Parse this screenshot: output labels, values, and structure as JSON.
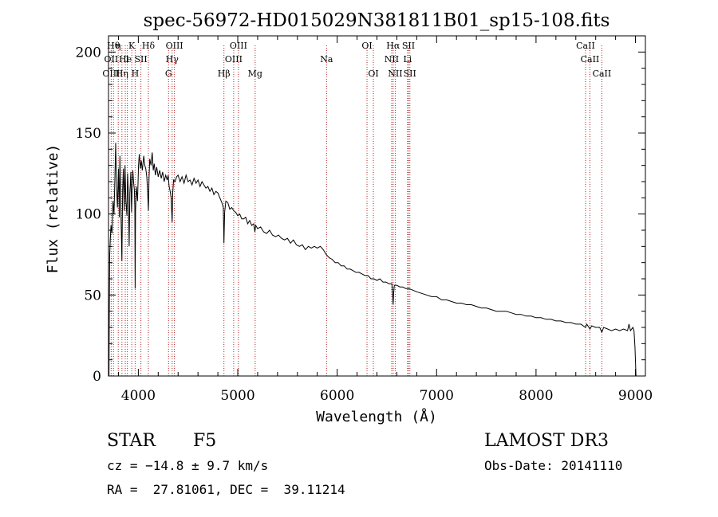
{
  "chart_data": {
    "type": "line",
    "title": "spec-56972-HD015029N381811B01_sp15-108.fits",
    "xlabel": "Wavelength (Å)",
    "ylabel": "Flux (relative)",
    "xlim": [
      3700,
      9100
    ],
    "ylim": [
      0,
      210
    ],
    "x_ticks": [
      4000,
      5000,
      6000,
      7000,
      8000,
      9000
    ],
    "y_ticks": [
      0,
      50,
      100,
      150,
      200
    ],
    "series": [
      {
        "name": "spectrum",
        "color": "#000000",
        "points": [
          [
            3705,
            0
          ],
          [
            3708,
            40
          ],
          [
            3712,
            75
          ],
          [
            3718,
            84
          ],
          [
            3725,
            93
          ],
          [
            3735,
            88
          ],
          [
            3745,
            108
          ],
          [
            3755,
            100
          ],
          [
            3765,
            124
          ],
          [
            3772,
            144
          ],
          [
            3780,
            118
          ],
          [
            3790,
            104
          ],
          [
            3800,
            128
          ],
          [
            3808,
            98
          ],
          [
            3815,
            136
          ],
          [
            3825,
            102
          ],
          [
            3835,
            71
          ],
          [
            3842,
            115
          ],
          [
            3850,
            128
          ],
          [
            3858,
            102
          ],
          [
            3866,
            130
          ],
          [
            3875,
            108
          ],
          [
            3885,
            99
          ],
          [
            3892,
            125
          ],
          [
            3900,
            113
          ],
          [
            3908,
            80
          ],
          [
            3915,
            113
          ],
          [
            3925,
            126
          ],
          [
            3932,
            101
          ],
          [
            3939,
            118
          ],
          [
            3945,
            127
          ],
          [
            3952,
            120
          ],
          [
            3960,
            115
          ],
          [
            3965,
            104
          ],
          [
            3968,
            54
          ],
          [
            3972,
            102
          ],
          [
            3980,
            117
          ],
          [
            3992,
            108
          ],
          [
            4002,
            130
          ],
          [
            4010,
            137
          ],
          [
            4020,
            128
          ],
          [
            4030,
            133
          ],
          [
            4040,
            127
          ],
          [
            4055,
            136
          ],
          [
            4065,
            130
          ],
          [
            4075,
            128
          ],
          [
            4085,
            123
          ],
          [
            4095,
            112
          ],
          [
            4101,
            102
          ],
          [
            4108,
            122
          ],
          [
            4115,
            134
          ],
          [
            4128,
            130
          ],
          [
            4140,
            138
          ],
          [
            4150,
            127
          ],
          [
            4160,
            131
          ],
          [
            4172,
            124
          ],
          [
            4185,
            129
          ],
          [
            4200,
            123
          ],
          [
            4215,
            127
          ],
          [
            4230,
            122
          ],
          [
            4245,
            126
          ],
          [
            4260,
            120
          ],
          [
            4275,
            124
          ],
          [
            4290,
            121
          ],
          [
            4300,
            124
          ],
          [
            4310,
            117
          ],
          [
            4320,
            114
          ],
          [
            4330,
            110
          ],
          [
            4340,
            95
          ],
          [
            4346,
            113
          ],
          [
            4355,
            121
          ],
          [
            4370,
            120
          ],
          [
            4385,
            123
          ],
          [
            4400,
            124
          ],
          [
            4420,
            120
          ],
          [
            4440,
            123
          ],
          [
            4460,
            119
          ],
          [
            4480,
            124
          ],
          [
            4500,
            120
          ],
          [
            4520,
            121
          ],
          [
            4540,
            118
          ],
          [
            4560,
            122
          ],
          [
            4580,
            119
          ],
          [
            4600,
            121
          ],
          [
            4620,
            117
          ],
          [
            4640,
            120
          ],
          [
            4660,
            118
          ],
          [
            4680,
            116
          ],
          [
            4700,
            117
          ],
          [
            4720,
            114
          ],
          [
            4740,
            116
          ],
          [
            4760,
            112
          ],
          [
            4780,
            114
          ],
          [
            4800,
            113
          ],
          [
            4820,
            110
          ],
          [
            4840,
            107
          ],
          [
            4855,
            104
          ],
          [
            4861,
            82
          ],
          [
            4868,
            101
          ],
          [
            4880,
            108
          ],
          [
            4900,
            107
          ],
          [
            4920,
            103
          ],
          [
            4940,
            104
          ],
          [
            4960,
            102
          ],
          [
            4980,
            101
          ],
          [
            5000,
            99
          ],
          [
            5020,
            100
          ],
          [
            5040,
            97
          ],
          [
            5060,
            97
          ],
          [
            5080,
            98
          ],
          [
            5100,
            94
          ],
          [
            5120,
            96
          ],
          [
            5140,
            93
          ],
          [
            5160,
            94
          ],
          [
            5172,
            89
          ],
          [
            5180,
            93
          ],
          [
            5200,
            91
          ],
          [
            5230,
            92
          ],
          [
            5260,
            89
          ],
          [
            5290,
            88
          ],
          [
            5320,
            90
          ],
          [
            5350,
            87
          ],
          [
            5380,
            86
          ],
          [
            5410,
            87
          ],
          [
            5440,
            85
          ],
          [
            5470,
            84
          ],
          [
            5500,
            85
          ],
          [
            5530,
            82
          ],
          [
            5560,
            84
          ],
          [
            5590,
            81
          ],
          [
            5620,
            80
          ],
          [
            5650,
            81
          ],
          [
            5680,
            78
          ],
          [
            5710,
            80
          ],
          [
            5740,
            79
          ],
          [
            5770,
            80
          ],
          [
            5800,
            79
          ],
          [
            5830,
            80
          ],
          [
            5860,
            78
          ],
          [
            5890,
            75
          ],
          [
            5920,
            73
          ],
          [
            5950,
            72
          ],
          [
            5980,
            70
          ],
          [
            6010,
            70
          ],
          [
            6040,
            68
          ],
          [
            6070,
            68
          ],
          [
            6100,
            66
          ],
          [
            6130,
            66
          ],
          [
            6160,
            65
          ],
          [
            6190,
            64
          ],
          [
            6220,
            64
          ],
          [
            6250,
            63
          ],
          [
            6280,
            62
          ],
          [
            6310,
            62
          ],
          [
            6340,
            60
          ],
          [
            6370,
            60
          ],
          [
            6400,
            59
          ],
          [
            6430,
            60
          ],
          [
            6460,
            58
          ],
          [
            6490,
            58
          ],
          [
            6520,
            57
          ],
          [
            6550,
            57
          ],
          [
            6558,
            50
          ],
          [
            6563,
            44
          ],
          [
            6568,
            51
          ],
          [
            6575,
            56
          ],
          [
            6600,
            56
          ],
          [
            6630,
            55
          ],
          [
            6660,
            55
          ],
          [
            6690,
            54
          ],
          [
            6720,
            54
          ],
          [
            6760,
            53
          ],
          [
            6800,
            52
          ],
          [
            6850,
            51
          ],
          [
            6900,
            50
          ],
          [
            6950,
            49
          ],
          [
            7000,
            49
          ],
          [
            7050,
            47
          ],
          [
            7100,
            47
          ],
          [
            7150,
            46
          ],
          [
            7200,
            45
          ],
          [
            7250,
            45
          ],
          [
            7300,
            44
          ],
          [
            7350,
            44
          ],
          [
            7400,
            43
          ],
          [
            7450,
            42
          ],
          [
            7500,
            42
          ],
          [
            7550,
            41
          ],
          [
            7600,
            40
          ],
          [
            7650,
            40
          ],
          [
            7700,
            40
          ],
          [
            7750,
            39
          ],
          [
            7800,
            38
          ],
          [
            7850,
            38
          ],
          [
            7900,
            37
          ],
          [
            7950,
            37
          ],
          [
            8000,
            36
          ],
          [
            8050,
            36
          ],
          [
            8100,
            35
          ],
          [
            8150,
            35
          ],
          [
            8200,
            34
          ],
          [
            8250,
            34
          ],
          [
            8300,
            33
          ],
          [
            8350,
            33
          ],
          [
            8400,
            32
          ],
          [
            8450,
            32
          ],
          [
            8498,
            30
          ],
          [
            8510,
            32
          ],
          [
            8542,
            29
          ],
          [
            8560,
            31
          ],
          [
            8600,
            30
          ],
          [
            8640,
            30
          ],
          [
            8662,
            27
          ],
          [
            8680,
            30
          ],
          [
            8720,
            29
          ],
          [
            8760,
            28
          ],
          [
            8800,
            29
          ],
          [
            8840,
            28
          ],
          [
            8880,
            29
          ],
          [
            8920,
            28
          ],
          [
            8935,
            32
          ],
          [
            8950,
            28
          ],
          [
            8975,
            30
          ],
          [
            8985,
            28
          ],
          [
            8995,
            18
          ],
          [
            9005,
            0
          ]
        ]
      }
    ],
    "line_markers": {
      "color": "#b22222",
      "style": "dotted",
      "lines": [
        {
          "wavelength": 3727,
          "rows": [
            {
              "row": 2,
              "text": "OII"
            },
            {
              "row": 3,
              "text": "OIII"
            }
          ]
        },
        {
          "wavelength": 3750,
          "rows": [
            {
              "row": 1,
              "text": "Hθ"
            }
          ]
        },
        {
          "wavelength": 3798,
          "rows": [
            {
              "row": 1,
              "text": "η"
            }
          ]
        },
        {
          "wavelength": 3835,
          "rows": [
            {
              "row": 3,
              "text": "Hη"
            }
          ]
        },
        {
          "wavelength": 3869,
          "rows": [
            {
              "row": 2,
              "text": "He"
            }
          ]
        },
        {
          "wavelength": 3889,
          "rows": [
            {
              "row": 2,
              "text": "I"
            }
          ]
        },
        {
          "wavelength": 3934,
          "rows": [
            {
              "row": 1,
              "text": "K"
            }
          ]
        },
        {
          "wavelength": 3968,
          "rows": [
            {
              "row": 3,
              "text": "H"
            }
          ]
        },
        {
          "wavelength": 4026,
          "rows": [
            {
              "row": 2,
              "text": "SII"
            }
          ]
        },
        {
          "wavelength": 4101,
          "rows": [
            {
              "row": 1,
              "text": "Hδ"
            }
          ]
        },
        {
          "wavelength": 4304,
          "rows": [
            {
              "row": 3,
              "text": "G"
            }
          ]
        },
        {
          "wavelength": 4340,
          "rows": [
            {
              "row": 2,
              "text": "Hγ"
            }
          ]
        },
        {
          "wavelength": 4363,
          "rows": [
            {
              "row": 1,
              "text": "OIII"
            }
          ]
        },
        {
          "wavelength": 4861,
          "rows": [
            {
              "row": 3,
              "text": "Hβ"
            }
          ]
        },
        {
          "wavelength": 4959,
          "rows": [
            {
              "row": 2,
              "text": "OIII"
            }
          ]
        },
        {
          "wavelength": 5007,
          "rows": [
            {
              "row": 1,
              "text": "OIII"
            }
          ]
        },
        {
          "wavelength": 5175,
          "rows": [
            {
              "row": 3,
              "text": "Mg"
            }
          ]
        },
        {
          "wavelength": 5893,
          "rows": [
            {
              "row": 2,
              "text": "Na"
            }
          ]
        },
        {
          "wavelength": 6300,
          "rows": [
            {
              "row": 1,
              "text": "OI"
            }
          ]
        },
        {
          "wavelength": 6364,
          "rows": [
            {
              "row": 3,
              "text": "OI"
            }
          ]
        },
        {
          "wavelength": 6548,
          "rows": [
            {
              "row": 2,
              "text": "NII"
            }
          ]
        },
        {
          "wavelength": 6563,
          "rows": [
            {
              "row": 1,
              "text": "Hα"
            }
          ]
        },
        {
          "wavelength": 6584,
          "rows": [
            {
              "row": 3,
              "text": "NII"
            }
          ]
        },
        {
          "wavelength": 6708,
          "rows": [
            {
              "row": 2,
              "text": "Li"
            }
          ]
        },
        {
          "wavelength": 6717,
          "rows": [
            {
              "row": 1,
              "text": "SII"
            }
          ]
        },
        {
          "wavelength": 6731,
          "rows": [
            {
              "row": 3,
              "text": "SII"
            }
          ]
        },
        {
          "wavelength": 8498,
          "rows": [
            {
              "row": 1,
              "text": "CaII"
            }
          ]
        },
        {
          "wavelength": 8542,
          "rows": [
            {
              "row": 2,
              "text": "CaII"
            }
          ]
        },
        {
          "wavelength": 8662,
          "rows": [
            {
              "row": 3,
              "text": "CaII"
            }
          ]
        }
      ]
    }
  },
  "info": {
    "object_class": "STAR",
    "subclass": "F5",
    "survey": "LAMOST DR3",
    "redshift": "cz = −14.8 ± 9.7 km/s",
    "obs_date": "Obs-Date: 20141110",
    "coords": "RA =  27.81061, DEC =  39.11214"
  }
}
